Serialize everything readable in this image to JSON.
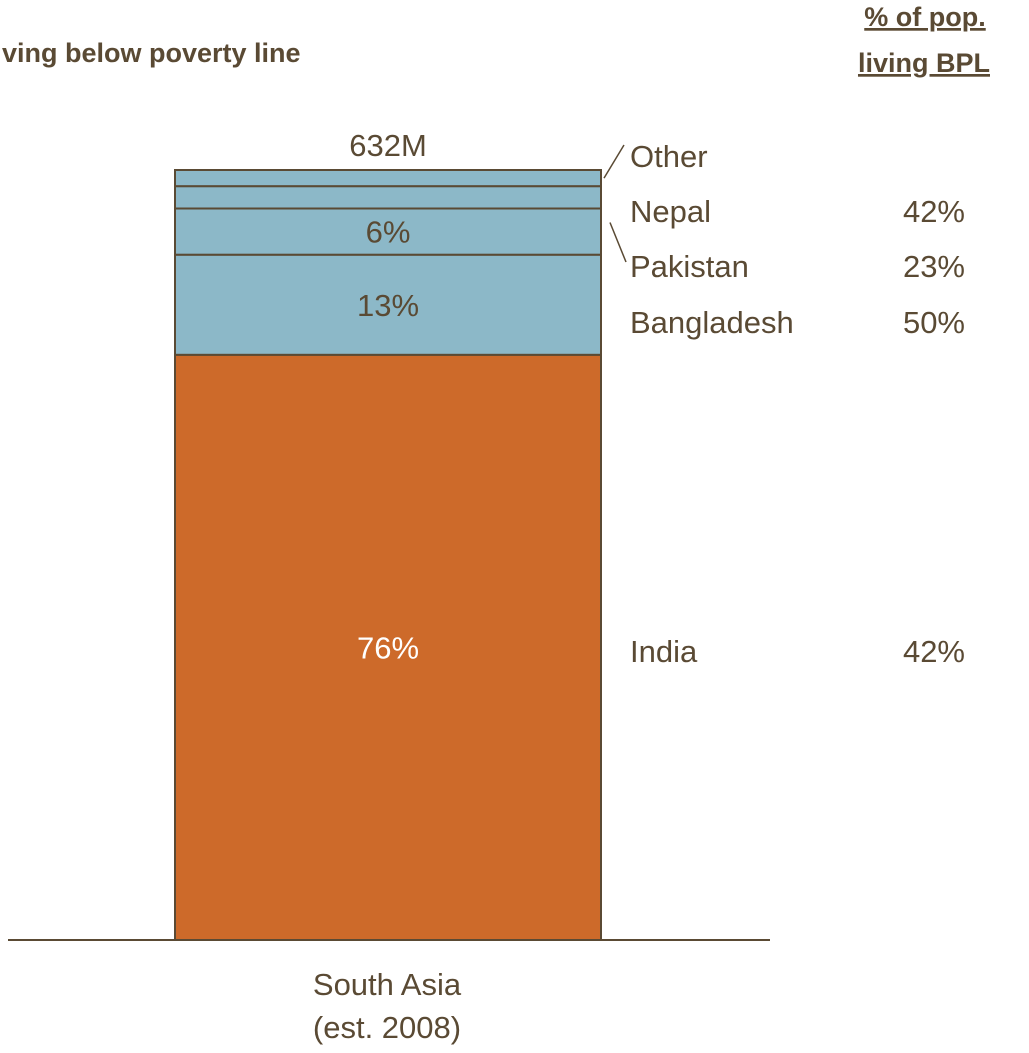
{
  "chart_data": {
    "type": "bar",
    "stacked": true,
    "title": "ving below poverty line",
    "column_header": [
      "% of pop.",
      "living  BPL"
    ],
    "categories": [
      "South Asia",
      "(est. 2008)"
    ],
    "total_label": "632M",
    "segments": [
      {
        "name": "India",
        "share": 76,
        "share_label": "76%",
        "bpl_label": "42%"
      },
      {
        "name": "Bangladesh",
        "share": 13,
        "share_label": "13%",
        "bpl_label": "50%"
      },
      {
        "name": "Pakistan",
        "share": 6,
        "share_label": "6%",
        "bpl_label": "23%"
      },
      {
        "name": "Nepal",
        "share": 2.9,
        "share_label": "",
        "bpl_label": "42%"
      },
      {
        "name": "Other",
        "share": 2.1,
        "share_label": "",
        "bpl_label": ""
      }
    ],
    "colors": {
      "india": "#cd6a2a",
      "others": "#8cb8c8",
      "edge": "#5a4a34",
      "text": "#5a4a34",
      "inner_text_dark": "#5a4a34",
      "inner_text_light": "#ffffff"
    },
    "ylim": [
      0,
      100
    ],
    "grid": false
  }
}
